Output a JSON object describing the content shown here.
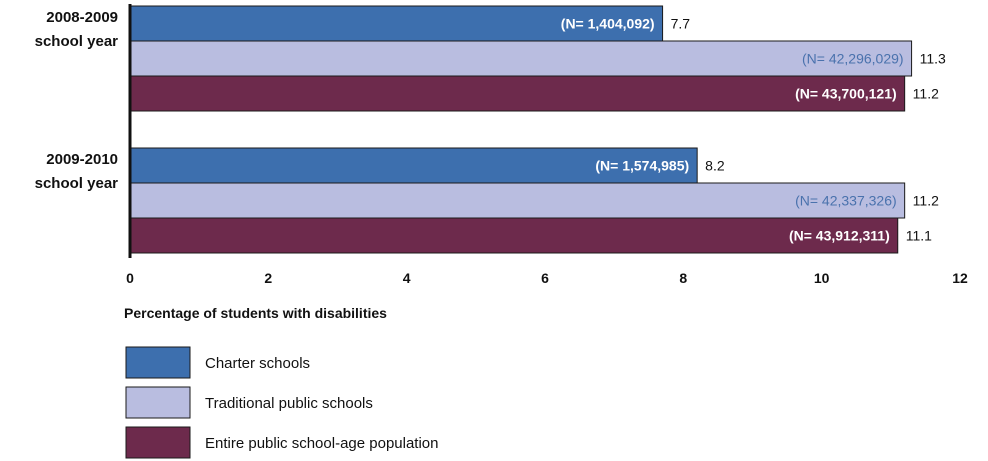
{
  "chart_data": {
    "type": "bar",
    "orientation": "horizontal",
    "categories": [
      [
        "2008-2009",
        "school year"
      ],
      [
        "2009-2010",
        "school year"
      ]
    ],
    "series": [
      {
        "name": "Charter schools",
        "color": "#3d6fae",
        "label_color": "#ffffff",
        "label_bold": true,
        "values": [
          7.7,
          8.2
        ],
        "value_labels": [
          "7.7",
          "8.2"
        ],
        "n_labels": [
          "(N= 1,404,092)",
          "(N= 1,574,985)"
        ]
      },
      {
        "name": "Traditional public schools",
        "color": "#b9bde0",
        "label_color": "#4a72ad",
        "label_bold": false,
        "values": [
          11.3,
          11.2
        ],
        "value_labels": [
          "11.3",
          "11.2"
        ],
        "n_labels": [
          "(N= 42,296,029)",
          "(N= 42,337,326)"
        ]
      },
      {
        "name": "Entire public school-age population",
        "color": "#6d2a4c",
        "label_color": "#ffffff",
        "label_bold": true,
        "values": [
          11.2,
          11.1
        ],
        "value_labels": [
          "11.2",
          "11.1"
        ],
        "n_labels": [
          "(N= 43,700,121)",
          "(N= 43,912,311)"
        ]
      }
    ],
    "xlabel": "Percentage of students with disabilities",
    "xlim": [
      0,
      12
    ],
    "xticks": [
      "0",
      "2",
      "4",
      "6",
      "8",
      "10",
      "12"
    ],
    "grid": false,
    "legend_position": "bottom-left"
  }
}
